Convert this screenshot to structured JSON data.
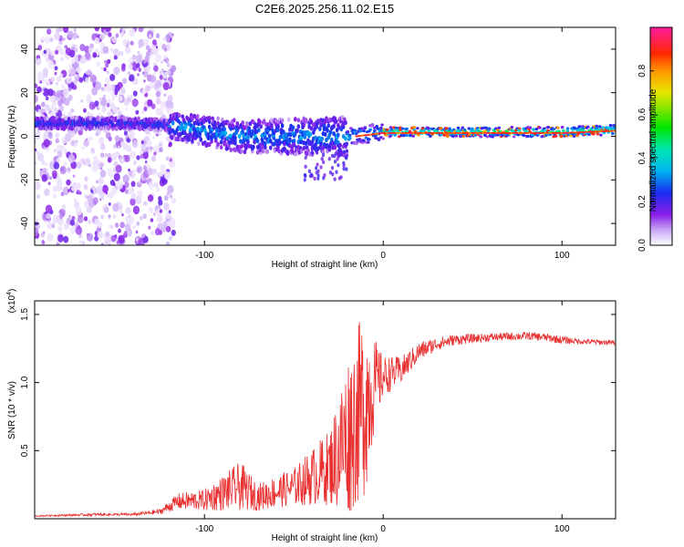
{
  "title": "C2E6.2025.256.11.02.E15",
  "chart_data": [
    {
      "type": "heatmap",
      "title": "C2E6.2025.256.11.02.E15",
      "xlabel": "Height of straight line (km)",
      "ylabel": "Frequency (Hz)",
      "xlim": [
        -195,
        130
      ],
      "ylim": [
        -50,
        50
      ],
      "xticks": [
        -100,
        0,
        100
      ],
      "xtick_labels": [
        "-100",
        "0",
        "100"
      ],
      "yticks": [
        -40,
        -20,
        0,
        20,
        40
      ],
      "ytick_labels": [
        "-40",
        "-20",
        "0",
        "20",
        "40"
      ],
      "colorbar": {
        "label": "Normalized spectral amplitude",
        "range": [
          0,
          1
        ],
        "ticks": [
          0.0,
          0.2,
          0.4,
          0.6,
          0.8
        ],
        "tick_labels": [
          "0.0",
          "0.2",
          "0.4",
          "0.6",
          "0.8"
        ]
      },
      "ridge": {
        "x": [
          -195,
          -140,
          -120,
          -80,
          -40,
          -20,
          0,
          50,
          100,
          130
        ],
        "center_freq_hz": [
          6,
          6,
          5,
          0,
          0,
          0,
          2,
          2,
          2,
          3
        ]
      }
    },
    {
      "type": "line",
      "xlabel": "Height of straight line (km)",
      "ylabel": "SNR (10 * v/v)",
      "y_scale_label": "(x10",
      "y_scale_exp": "4",
      "y_scale_close": ")",
      "xlim": [
        -195,
        130
      ],
      "ylim": [
        0,
        1.6
      ],
      "xticks": [
        -100,
        0,
        100
      ],
      "xtick_labels": [
        "-100",
        "0",
        "100"
      ],
      "yticks": [
        0.5,
        1.0,
        1.5
      ],
      "ytick_labels": [
        "0.5",
        "1.0",
        "1.5"
      ],
      "series": [
        {
          "name": "SNR",
          "color": "#e83030",
          "x": [
            -195,
            -160,
            -140,
            -125,
            -115,
            -100,
            -80,
            -70,
            -50,
            -30,
            -20,
            -10,
            -5,
            0,
            10,
            20,
            30,
            40,
            60,
            80,
            90,
            100,
            110,
            130
          ],
          "y": [
            0.02,
            0.03,
            0.03,
            0.05,
            0.12,
            0.13,
            0.22,
            0.15,
            0.22,
            0.35,
            0.55,
            0.8,
            0.95,
            1.03,
            1.08,
            1.22,
            1.28,
            1.31,
            1.33,
            1.34,
            1.33,
            1.31,
            1.3,
            1.29
          ],
          "noise_amplitude": [
            0.005,
            0.01,
            0.01,
            0.02,
            0.06,
            0.08,
            0.18,
            0.1,
            0.14,
            0.28,
            0.6,
            0.7,
            0.35,
            0.15,
            0.1,
            0.07,
            0.05,
            0.04,
            0.03,
            0.03,
            0.03,
            0.03,
            0.02,
            0.02
          ]
        }
      ]
    }
  ]
}
